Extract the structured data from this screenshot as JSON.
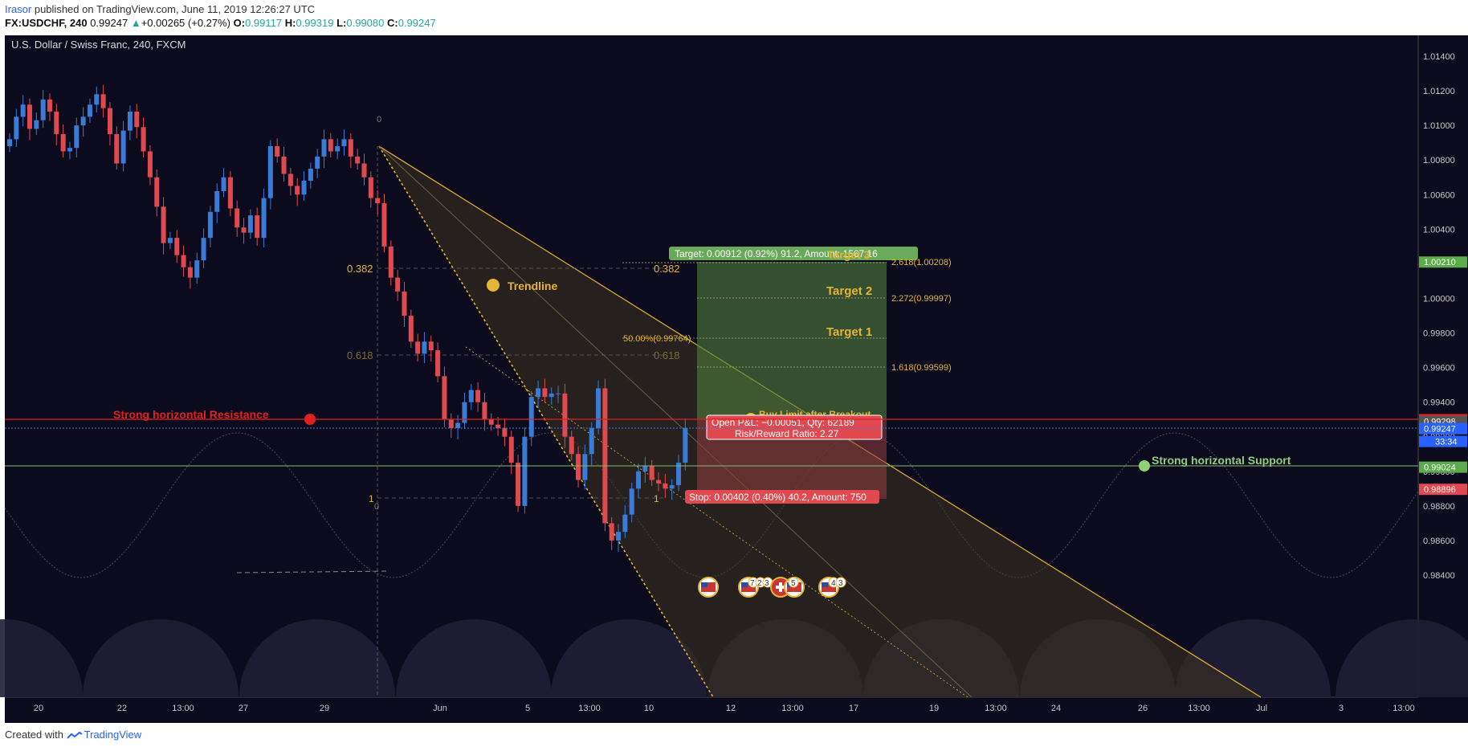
{
  "header": {
    "user": "Irasor",
    "published_text": " published on TradingView.com, June 11, 2019 12:26:27 UTC",
    "symbol": "FX:USDCHF, 240",
    "last": "0.99247",
    "change": "+0.00265 (+0.27%)",
    "open_label": "O:",
    "open": "0.99117",
    "high_label": "H:",
    "high": "0.99319",
    "low_label": "L:",
    "low": "0.99080",
    "close_label": "C:",
    "close": "0.99247"
  },
  "footer": {
    "created_with": "Created with",
    "brand": "TradingView"
  },
  "colors": {
    "background": "#0c0b1e",
    "up": "#3a7bd5",
    "down": "#e0494f",
    "resistance": "#e02020",
    "support": "#7fbf6a",
    "fib": "#e6b434"
  },
  "chart_data": {
    "type": "candlestick",
    "title": "U.S. Dollar / Swiss Franc, 240, FXCM",
    "ylim": [
      0.983,
      1.016
    ],
    "y_ticks": [
      "1.01400",
      "1.01200",
      "1.01000",
      "1.00800",
      "1.00600",
      "1.00400",
      "1.00200",
      "1.00000",
      "0.99800",
      "0.99600",
      "0.99400",
      "0.99200",
      "0.99000",
      "0.98800",
      "0.98600",
      "0.98400"
    ],
    "x_ticks": [
      "20",
      "22",
      "13:00",
      "27",
      "29",
      "Jun",
      "5",
      "13:00",
      "10",
      "12",
      "13:00",
      "17",
      "19",
      "13:00",
      "24",
      "26",
      "13:00",
      "Jul",
      "3",
      "13:00"
    ],
    "close": [
      1.0092,
      1.0105,
      1.0112,
      1.0098,
      1.0103,
      1.0115,
      1.0108,
      1.0095,
      1.0085,
      1.0087,
      1.01,
      1.0105,
      1.0112,
      1.0118,
      1.011,
      1.0095,
      1.0078,
      1.0097,
      1.0108,
      1.0099,
      1.0085,
      1.007,
      1.0053,
      1.0032,
      1.0035,
      1.0025,
      1.0018,
      1.0012,
      1.0022,
      1.0035,
      1.005,
      1.0062,
      1.007,
      1.0052,
      1.0041,
      1.0038,
      1.0048,
      1.0035,
      1.0058,
      1.0088,
      1.0082,
      1.0072,
      1.0065,
      1.006,
      1.0068,
      1.0075,
      1.0082,
      1.0092,
      1.0085,
      1.0088,
      1.0092,
      1.0082,
      1.0078,
      1.007,
      1.0058,
      1.0055,
      1.003,
      1.0012,
      1.0004,
      0.999,
      0.9975,
      0.9968,
      0.9975,
      0.997,
      0.9955,
      0.993,
      0.9925,
      0.9928,
      0.994,
      0.9947,
      0.994,
      0.993,
      0.9927,
      0.9925,
      0.992,
      0.9905,
      0.988,
      0.992,
      0.9943,
      0.9948,
      0.9943,
      0.9945,
      0.9945,
      0.992,
      0.991,
      0.9895,
      0.991,
      0.9925,
      0.9948,
      0.987,
      0.986,
      0.9865,
      0.9875,
      0.989,
      0.99,
      0.9903,
      0.9895,
      0.9893,
      0.989,
      0.9892,
      0.9905,
      0.9925
    ],
    "series": [
      {
        "name": "Strong horizontal Resistance",
        "value": 0.99299
      },
      {
        "name": "Strong horizontal Support",
        "value": 0.99024
      }
    ],
    "last_price": 0.99247,
    "countdown": "33:34",
    "price_labels": [
      {
        "value": "0.99299",
        "color": "#e02020"
      },
      {
        "value": "0.99298",
        "color": "#555555"
      },
      {
        "value": "0.99247",
        "color": "#2962ff"
      },
      {
        "value": "0.99024",
        "color": "#5cab4c"
      },
      {
        "value": "0.98896",
        "color": "#e0494f"
      },
      {
        "value": "1.00210",
        "color": "#5cab4c"
      }
    ],
    "annotations": {
      "trendline": "Trendline",
      "resistance": "Strong horizontal Resistance",
      "support": "Strong horizontal Support",
      "target1": "Target 1",
      "target2": "Target 2",
      "target3": "Target 3",
      "fib_1618": "1.618(0.99599)",
      "fib_2272": "2.272(0.99997)",
      "fib_2618": "2.618(1.00208)",
      "fib_50": "50.00%(0.99764)",
      "fan_0382_left": "0.382",
      "fan_0382_right": "0.382",
      "fan_0618_left": "0.618",
      "fan_0618_right": "0.618",
      "fan_0": "0",
      "fan_0_bottom": "0",
      "fan_1_left": "1",
      "fan_1_right": "1",
      "buy_limit": "Buy Limit after Breakout",
      "target_box": "Target: 0.00912 (0.92%) 91.2, Amount: 1567.16",
      "open_box": "Open P&L: −0.00051, Qty: 62189",
      "rr_box": "Risk/Reward Ratio: 2.27",
      "stop_box": "Stop: 0.00402 (0.40%) 40.2, Amount: 750",
      "event_counts": [
        "7",
        "2",
        "3",
        "5",
        "4",
        "3"
      ]
    }
  }
}
